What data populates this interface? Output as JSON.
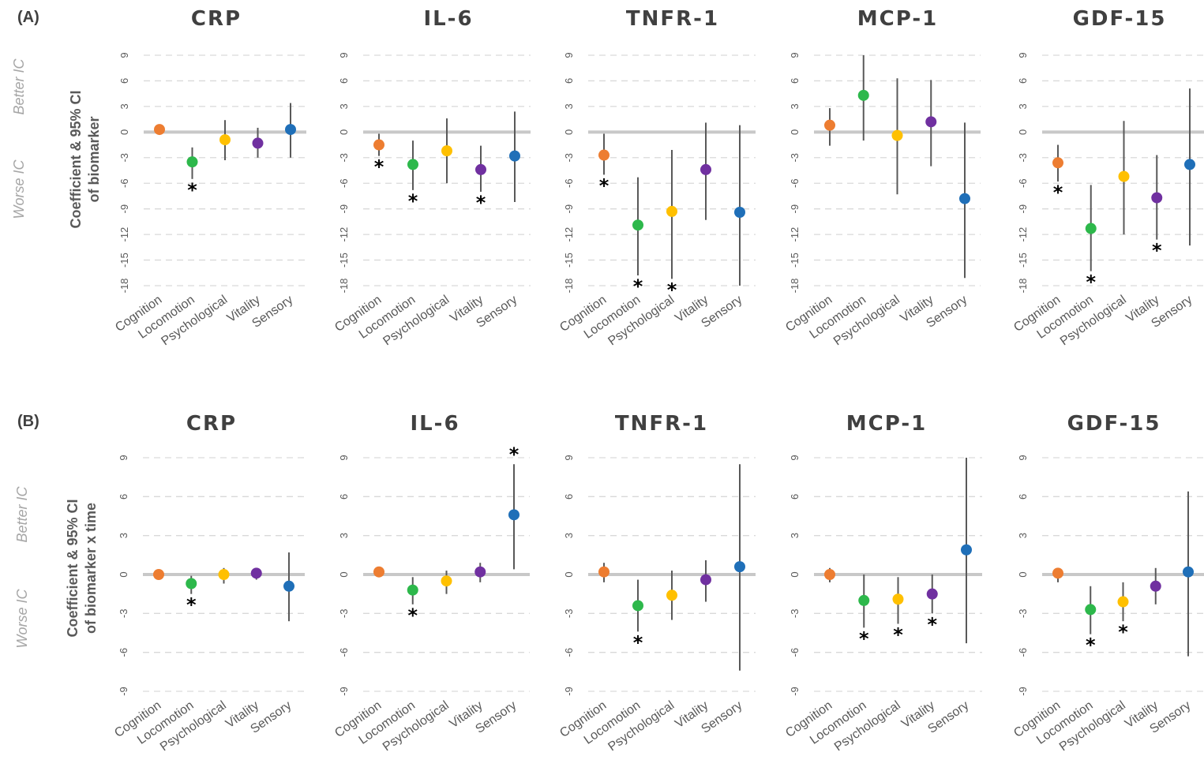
{
  "panels": [
    {
      "letter": "(A)",
      "ylabel_lines": [
        "Coefficient & 95% CI",
        "of biomarker"
      ],
      "side_upper": "Better IC",
      "side_lower": "Worse IC"
    },
    {
      "letter": "(B)",
      "ylabel_lines": [
        "Coefficient & 95% CI",
        "of biomarker x time"
      ],
      "side_upper": "Better IC",
      "side_lower": "Worse IC"
    }
  ],
  "colors": {
    "Cognition": "#ED7D31",
    "Locomotion": "#2DB84B",
    "Psychological": "#FFC000",
    "Vitality": "#7030A0",
    "Sensory": "#1F6FB8",
    "errorbar": "#595959",
    "zeroline": "#C8C8C8",
    "grid": "#D9D9D9"
  },
  "chart_data": [
    {
      "panel": "A",
      "title": "CRP",
      "type": "scatter",
      "categories": [
        "Cognition",
        "Locomotion",
        "Psychological",
        "Vitality",
        "Sensory"
      ],
      "yticks": [
        "9",
        "6",
        "3",
        "0",
        "-3",
        "-6",
        "-9",
        "-12",
        "-15",
        "-18"
      ],
      "ylim": [
        -18,
        9
      ],
      "values": [
        0.3,
        -3.5,
        -0.9,
        -1.3,
        0.3
      ],
      "ci_low": [
        0.0,
        -5.5,
        -3.3,
        -3.0,
        -3.0
      ],
      "ci_high": [
        0.7,
        -1.8,
        1.4,
        0.5,
        3.4
      ],
      "significant": [
        false,
        true,
        false,
        false,
        false
      ]
    },
    {
      "panel": "A",
      "title": "IL-6",
      "type": "scatter",
      "categories": [
        "Cognition",
        "Locomotion",
        "Psychological",
        "Vitality",
        "Sensory"
      ],
      "yticks": [
        "9",
        "6",
        "3",
        "0",
        "-3",
        "-6",
        "-9",
        "-12",
        "-15",
        "-18"
      ],
      "ylim": [
        -18,
        9
      ],
      "values": [
        -1.5,
        -3.8,
        -2.2,
        -4.4,
        -2.8
      ],
      "ci_low": [
        -2.8,
        -6.8,
        -6.0,
        -7.0,
        -8.2
      ],
      "ci_high": [
        -0.2,
        -1.0,
        1.6,
        -1.6,
        2.4
      ],
      "significant": [
        true,
        true,
        false,
        true,
        false
      ]
    },
    {
      "panel": "A",
      "title": "TNFR-1",
      "type": "scatter",
      "categories": [
        "Cognition",
        "Locomotion",
        "Psychological",
        "Vitality",
        "Sensory"
      ],
      "yticks": [
        "9",
        "6",
        "3",
        "0",
        "-3",
        "-6",
        "-9",
        "-12",
        "-15",
        "-18"
      ],
      "ylim": [
        -18,
        9
      ],
      "values": [
        -2.7,
        -10.9,
        -9.3,
        -4.4,
        -9.4
      ],
      "ci_low": [
        -5.0,
        -16.8,
        -17.2,
        -10.3,
        -18.4
      ],
      "ci_high": [
        -0.2,
        -5.3,
        -2.1,
        1.1,
        0.8
      ],
      "significant": [
        true,
        true,
        true,
        false,
        false
      ]
    },
    {
      "panel": "A",
      "title": "MCP-1",
      "type": "scatter",
      "categories": [
        "Cognition",
        "Locomotion",
        "Psychological",
        "Vitality",
        "Sensory"
      ],
      "yticks": [
        "9",
        "6",
        "3",
        "0",
        "-3",
        "-6",
        "-9",
        "-12",
        "-15",
        "-18"
      ],
      "ylim": [
        -18,
        9
      ],
      "values": [
        0.8,
        4.3,
        -0.4,
        1.2,
        -7.8
      ],
      "ci_low": [
        -1.6,
        -1.0,
        -7.3,
        -4.0,
        -17.1
      ],
      "ci_high": [
        2.8,
        9.2,
        6.3,
        6.1,
        1.1
      ],
      "significant": [
        false,
        false,
        false,
        false,
        false
      ]
    },
    {
      "panel": "A",
      "title": "GDF-15",
      "type": "scatter",
      "categories": [
        "Cognition",
        "Locomotion",
        "Psychological",
        "Vitality",
        "Sensory"
      ],
      "yticks": [
        "9",
        "6",
        "3",
        "0",
        "-3",
        "-6",
        "-9",
        "-12",
        "-15",
        "-18"
      ],
      "ylim": [
        -18,
        9
      ],
      "values": [
        -3.6,
        -11.3,
        -5.2,
        -7.7,
        -3.8
      ],
      "ci_low": [
        -5.8,
        -16.3,
        -12.0,
        -12.6,
        -13.3
      ],
      "ci_high": [
        -1.5,
        -6.2,
        1.3,
        -2.7,
        5.1
      ],
      "significant": [
        true,
        true,
        false,
        true,
        false
      ]
    },
    {
      "panel": "B",
      "title": "CRP",
      "type": "scatter",
      "categories": [
        "Cognition",
        "Locomotion",
        "Psychological",
        "Vitality",
        "Sensory"
      ],
      "yticks": [
        "9",
        "6",
        "3",
        "0",
        "-3",
        "-6",
        "-9"
      ],
      "ylim": [
        -9,
        9
      ],
      "values": [
        0.0,
        -0.7,
        0.0,
        0.1,
        -0.9
      ],
      "ci_low": [
        -0.2,
        -1.5,
        -0.7,
        -0.4,
        -3.6
      ],
      "ci_high": [
        0.2,
        -0.1,
        0.5,
        0.5,
        1.7
      ],
      "significant": [
        false,
        true,
        false,
        false,
        false
      ]
    },
    {
      "panel": "B",
      "title": "IL-6",
      "type": "scatter",
      "categories": [
        "Cognition",
        "Locomotion",
        "Psychological",
        "Vitality",
        "Sensory"
      ],
      "yticks": [
        "9",
        "6",
        "3",
        "0",
        "-3",
        "-6",
        "-9"
      ],
      "ylim": [
        -9,
        9
      ],
      "values": [
        0.2,
        -1.2,
        -0.5,
        0.2,
        4.6
      ],
      "ci_low": [
        0.0,
        -2.3,
        -1.5,
        -0.6,
        0.4
      ],
      "ci_high": [
        0.4,
        -0.2,
        0.3,
        0.9,
        8.5
      ],
      "significant": [
        false,
        true,
        false,
        false,
        true
      ]
    },
    {
      "panel": "B",
      "title": "TNFR-1",
      "type": "scatter",
      "categories": [
        "Cognition",
        "Locomotion",
        "Psychological",
        "Vitality",
        "Sensory"
      ],
      "yticks": [
        "9",
        "6",
        "3",
        "0",
        "-3",
        "-6",
        "-9"
      ],
      "ylim": [
        -9,
        9
      ],
      "values": [
        0.2,
        -2.4,
        -1.6,
        -0.4,
        0.6
      ],
      "ci_low": [
        -0.6,
        -4.4,
        -3.5,
        -2.1,
        -7.4
      ],
      "ci_high": [
        0.9,
        -0.4,
        0.3,
        1.1,
        8.5
      ],
      "significant": [
        false,
        true,
        false,
        false,
        false
      ]
    },
    {
      "panel": "B",
      "title": "MCP-1",
      "type": "scatter",
      "categories": [
        "Cognition",
        "Locomotion",
        "Psychological",
        "Vitality",
        "Sensory"
      ],
      "yticks": [
        "9",
        "6",
        "3",
        "0",
        "-3",
        "-6",
        "-9"
      ],
      "ylim": [
        -9,
        9
      ],
      "values": [
        0.0,
        -2.0,
        -1.9,
        -1.5,
        1.9
      ],
      "ci_low": [
        -0.6,
        -4.1,
        -3.8,
        -3.0,
        -5.3
      ],
      "ci_high": [
        0.5,
        0.0,
        -0.2,
        0.0,
        9.0
      ],
      "significant": [
        false,
        true,
        true,
        true,
        false
      ]
    },
    {
      "panel": "B",
      "title": "GDF-15",
      "type": "scatter",
      "categories": [
        "Cognition",
        "Locomotion",
        "Psychological",
        "Vitality",
        "Sensory"
      ],
      "yticks": [
        "9",
        "6",
        "3",
        "0",
        "-3",
        "-6",
        "-9"
      ],
      "ylim": [
        -9,
        9
      ],
      "values": [
        0.1,
        -2.7,
        -2.1,
        -0.9,
        0.2
      ],
      "ci_low": [
        -0.6,
        -4.6,
        -3.6,
        -2.3,
        -6.3
      ],
      "ci_high": [
        0.3,
        -0.9,
        -0.6,
        0.5,
        6.4
      ],
      "significant": [
        false,
        true,
        true,
        false,
        false
      ]
    }
  ]
}
